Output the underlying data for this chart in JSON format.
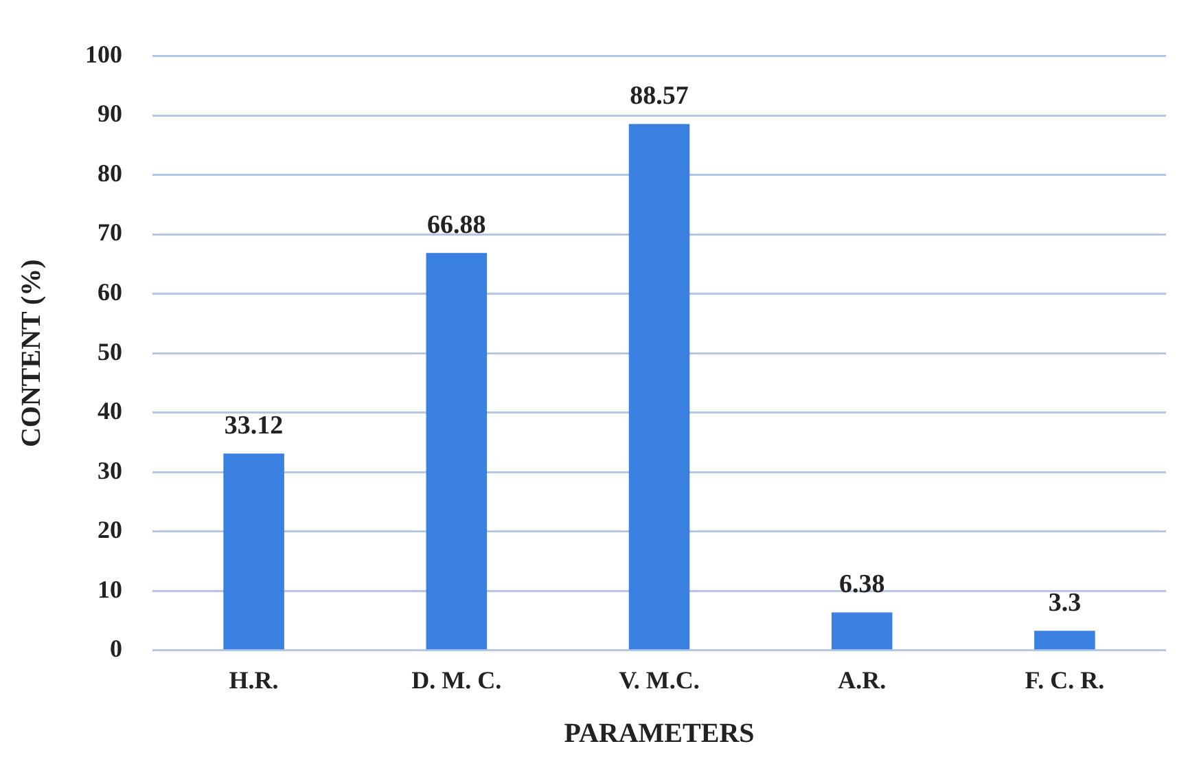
{
  "chart_data": {
    "type": "bar",
    "xlabel": "PARAMETERS",
    "ylabel": "CONTENT (%)",
    "categories": [
      "H.R.",
      "D. M. C.",
      "V. M.C.",
      "A.R.",
      "F. C. R."
    ],
    "values": [
      33.12,
      66.88,
      88.57,
      6.38,
      3.3
    ],
    "color": "#3a80e0",
    "ylim": [
      0,
      100
    ],
    "yticks": [
      0,
      10,
      20,
      30,
      40,
      50,
      60,
      70,
      80,
      90,
      100
    ],
    "grid": "y",
    "data_labels": true
  }
}
